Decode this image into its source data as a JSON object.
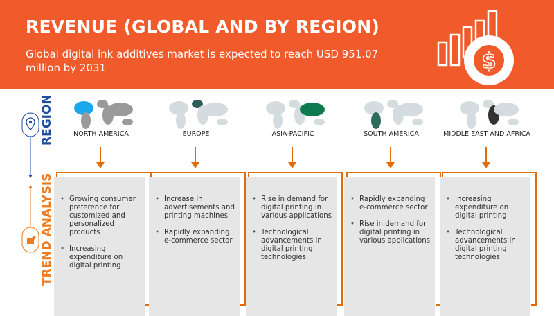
{
  "header": {
    "title": "REVENUE (GLOBAL AND BY REGION)",
    "subtitle": "Global digital ink additives market is expected to reach USD 951.07 million by 2031",
    "icon": "revenue-growth-dollar-icon"
  },
  "side": {
    "region_label": "REGION",
    "trend_label": "TREND ANALYSIS"
  },
  "colors": {
    "brand": "#F15A2B",
    "arrow": "#E36C0A",
    "region_blue": "#1F4E9E",
    "box_gray": "#E6E6E6"
  },
  "regions": [
    {
      "name": "NORTH AMERICA",
      "highlight": "#1AA7EC",
      "trends": [
        "Growing consumer preference for customized and personalized products",
        "Increasing expenditure on digital printing"
      ]
    },
    {
      "name": "EUROPE",
      "highlight": "#2E5E58",
      "trends": [
        "Increase in advertisements and printing machines",
        "Rapidly expanding e-commerce sector"
      ]
    },
    {
      "name": "ASIA-PACIFIC",
      "highlight": "#0E7B4F",
      "trends": [
        "Rise in demand for digital printing in various applications",
        "Technological advancements in digital printing technologies"
      ]
    },
    {
      "name": "SOUTH AMERICA",
      "highlight": "#2E6B5A",
      "trends": [
        "Rapidly expanding e-commerce sector",
        "Rise in demand for digital printing in various applications"
      ]
    },
    {
      "name": "MIDDLE EAST AND AFRICA",
      "highlight": "#333333",
      "trends": [
        "Increasing expenditure on digital printing",
        "Technological advancements in digital printing technologies"
      ]
    }
  ]
}
